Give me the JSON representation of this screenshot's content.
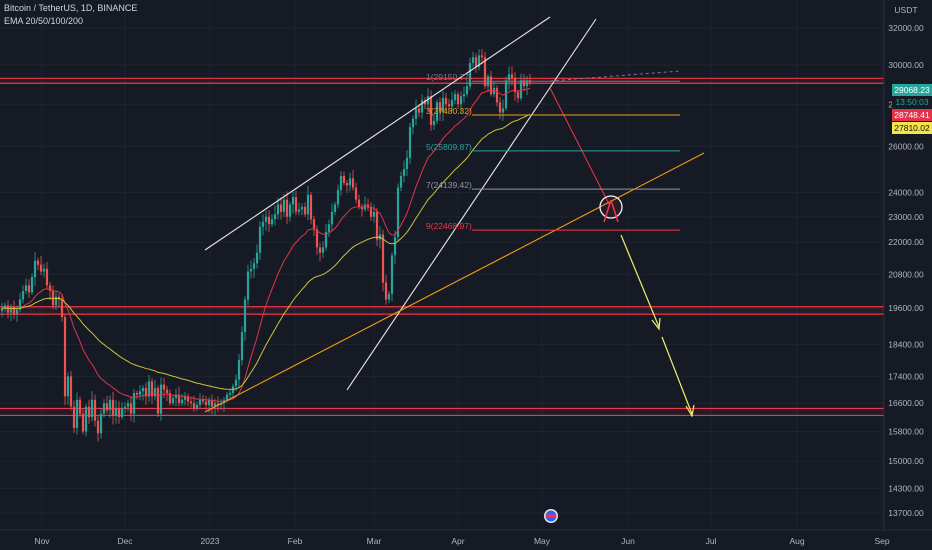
{
  "header": {
    "symbol": "Bitcoin / TetherUS, 1D, BINANCE",
    "indicator": "EMA 20/50/100/200"
  },
  "axis": {
    "currency": "USDT"
  },
  "price_tags": {
    "last": "29068.23",
    "countdown": "13:50:03",
    "ema_red": "28748.41",
    "ema_yellow": "27810.02"
  },
  "colors": {
    "background": "#161a25",
    "up": "#26a69a",
    "down": "#ef5350",
    "ema_red": "#e0344a",
    "ema_yellow": "#c9c23a",
    "trendline_orange": "#f39c12",
    "arrow_yellow": "#f5ef6b",
    "level_red": "#f23645"
  },
  "chart_data": {
    "type": "candlestick",
    "y_scale": "log",
    "ylim": [
      13300,
      33600
    ],
    "y_ticks": [
      32000,
      30000,
      28000,
      26000,
      24000,
      23000,
      22000,
      20800,
      19600,
      18400,
      17400,
      16600,
      15800,
      15000,
      14300,
      13700
    ],
    "y_tick_labels": [
      "32000.00",
      "30000.00",
      "28000.00",
      "26000.00",
      "24000.00",
      "23000.00",
      "22000.00",
      "20800.00",
      "19600.00",
      "18400.00",
      "17400.00",
      "16600.00",
      "15800.00",
      "15000.00",
      "14300.00",
      "13700.00"
    ],
    "x_labels": [
      "Nov",
      "Dec",
      "2023",
      "Feb",
      "Mar",
      "Apr",
      "May",
      "Jun",
      "Jul",
      "Aug",
      "Sep"
    ],
    "fib_levels": [
      {
        "label": "1(29150.77)",
        "value": 29150.77,
        "color": "#787b86"
      },
      {
        "label": "3(27480.32)",
        "value": 27480.32,
        "color": "#f39c12"
      },
      {
        "label": "5(25809.87)",
        "value": 25809.87,
        "color": "#26a69a"
      },
      {
        "label": "7(24139.42)",
        "value": 24139.42,
        "color": "#9598a1"
      },
      {
        "label": "9(22468.97)",
        "value": 22468.97,
        "color": "#f23645"
      }
    ],
    "horizontal_zones": [
      {
        "low": 29050,
        "high": 29300
      },
      {
        "low": 19400,
        "high": 19650
      },
      {
        "low": 16250,
        "high": 16450
      }
    ],
    "closes": [
      19600,
      19700,
      19450,
      19650,
      19400,
      19550,
      19900,
      20200,
      20400,
      20150,
      20700,
      21300,
      21150,
      20900,
      21000,
      20400,
      20200,
      19700,
      20000,
      19900,
      19300,
      16800,
      17400,
      16500,
      15900,
      16700,
      16300,
      15800,
      16500,
      16200,
      16700,
      16100,
      15750,
      16300,
      16600,
      16400,
      16700,
      16250,
      16450,
      16200,
      16450,
      16500,
      16600,
      16300,
      16900,
      16850,
      16950,
      17050,
      16800,
      17250,
      16800,
      17050,
      16300,
      17150,
      17000,
      16900,
      16600,
      16750,
      16850,
      16600,
      16700,
      16800,
      16650,
      16600,
      16450,
      16550,
      16700,
      16650,
      16550,
      16700,
      16500,
      16600,
      16550,
      16600,
      16700,
      16850,
      16900,
      17100,
      17300,
      17900,
      18800,
      19900,
      20900,
      21000,
      21200,
      21600,
      22600,
      22800,
      23000,
      22700,
      22900,
      23100,
      23500,
      23200,
      23700,
      23000,
      23500,
      23800,
      23200,
      23300,
      23400,
      23100,
      23900,
      22900,
      22500,
      21800,
      21600,
      21800,
      22400,
      22700,
      23200,
      23500,
      24100,
      24700,
      24400,
      24300,
      24600,
      24200,
      23700,
      23400,
      23300,
      23500,
      23400,
      23000,
      23200,
      22100,
      22300,
      20500,
      19900,
      20100,
      21500,
      22200,
      24200,
      24700,
      25000,
      25500,
      26900,
      27300,
      27800,
      27600,
      28200,
      28000,
      28400,
      27000,
      27200,
      28100,
      27600,
      28300,
      28000,
      27900,
      28200,
      28500,
      28000,
      28400,
      28500,
      28900,
      30100,
      30400,
      29900,
      30500,
      30400,
      28900,
      29400,
      28500,
      28800,
      28100,
      27600,
      27800,
      29200,
      29500,
      29300,
      28600,
      28300,
      29200,
      28900,
      29200,
      29100
    ]
  }
}
